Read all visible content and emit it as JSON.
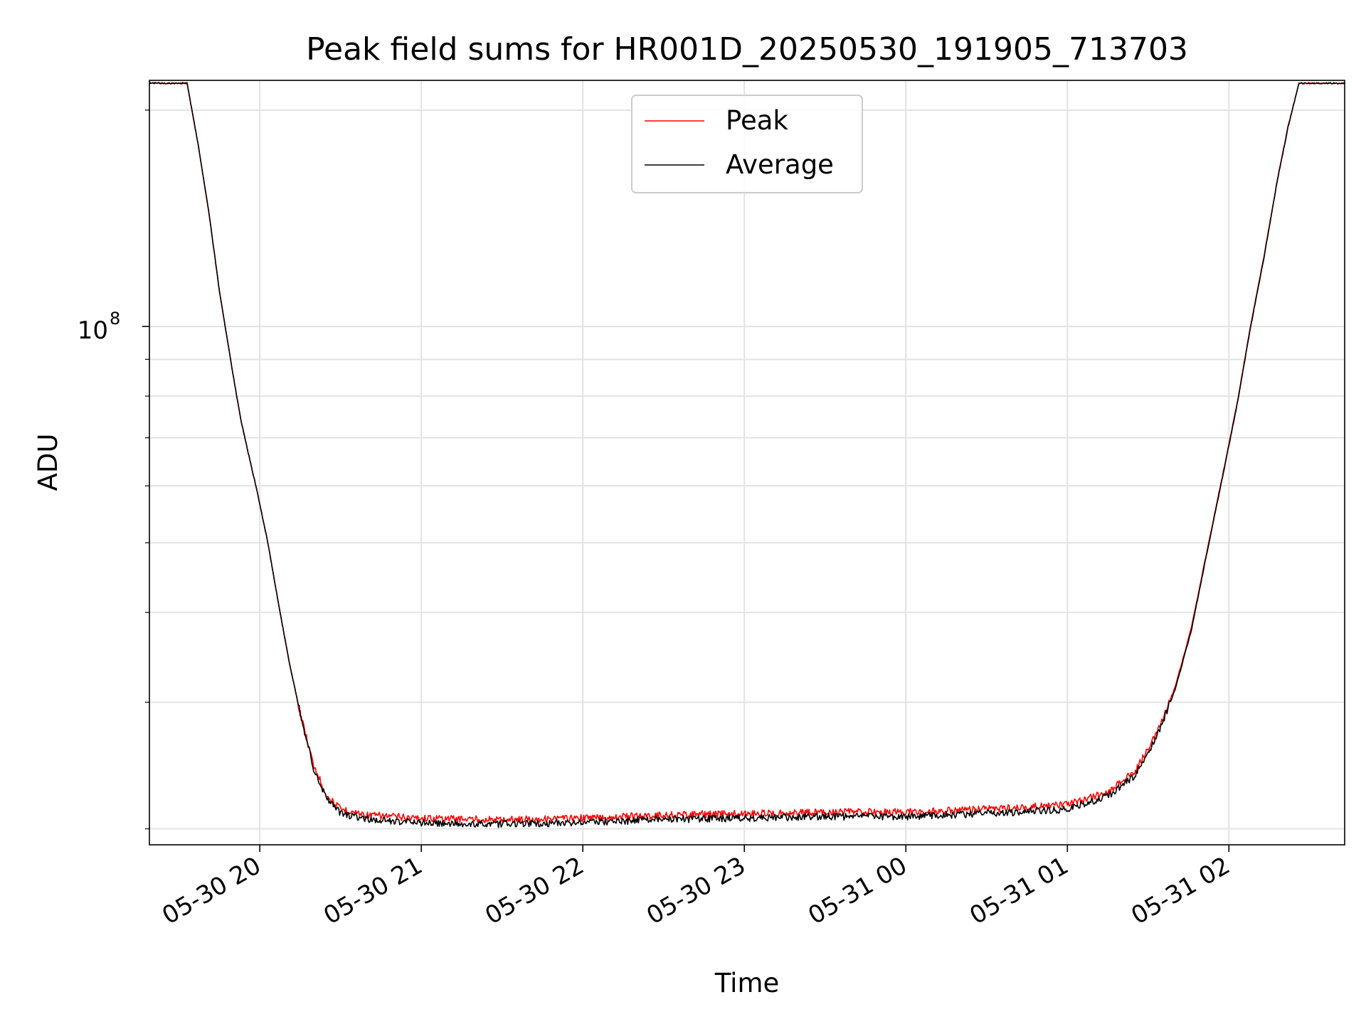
{
  "chart_data": {
    "type": "line",
    "title": "Peak field sums for HR001D_20250530_191905_713703",
    "xlabel": "Time",
    "ylabel": "ADU",
    "yscale": "log",
    "grid": true,
    "legend_placement": "top-center",
    "x_tick_labels": [
      "05-30 20",
      "05-30 21",
      "05-30 22",
      "05-30 23",
      "05-31 00",
      "05-31 01",
      "05-31 02"
    ],
    "x_ticks": [
      "2025-05-30 20:00",
      "2025-05-30 21:00",
      "2025-05-30 22:00",
      "2025-05-30 23:00",
      "2025-05-31 00:00",
      "2025-05-31 01:00",
      "2025-05-31 02:00"
    ],
    "xlim": [
      "2025-05-30 19:19",
      "2025-05-31 02:43"
    ],
    "y_major_tick": {
      "value": 100000000,
      "label_base": "10",
      "label_exp": "8"
    },
    "ylim": [
      19000000,
      220000000
    ],
    "series": [
      {
        "name": "Peak",
        "color": "#ff0000",
        "x": [
          "2025-05-30 19:19",
          "2025-05-30 19:27",
          "2025-05-30 19:33",
          "2025-05-30 19:37",
          "2025-05-30 19:41",
          "2025-05-30 19:45",
          "2025-05-30 19:50",
          "2025-05-30 19:53",
          "2025-05-30 19:56",
          "2025-05-30 19:59",
          "2025-05-30 20:03",
          "2025-05-30 20:07",
          "2025-05-30 20:11",
          "2025-05-30 20:15",
          "2025-05-30 20:20",
          "2025-05-30 20:25",
          "2025-05-30 20:30",
          "2025-05-30 20:40",
          "2025-05-30 21:00",
          "2025-05-30 21:30",
          "2025-05-30 22:00",
          "2025-05-30 22:30",
          "2025-05-30 23:00",
          "2025-05-30 23:30",
          "2025-05-31 00:00",
          "2025-05-31 00:30",
          "2025-05-31 01:00",
          "2025-05-31 01:15",
          "2025-05-31 01:25",
          "2025-05-31 01:33",
          "2025-05-31 01:40",
          "2025-05-31 01:46",
          "2025-05-31 01:52",
          "2025-05-31 01:58",
          "2025-05-31 02:03",
          "2025-05-31 02:08",
          "2025-05-31 02:13",
          "2025-05-31 02:18",
          "2025-05-31 02:22",
          "2025-05-31 02:26",
          "2025-05-31 02:43"
        ],
        "y": [
          218000000,
          218000000,
          218000000,
          180000000,
          145000000,
          112000000,
          86000000,
          74000000,
          66000000,
          59000000,
          50000000,
          41000000,
          34000000,
          29000000,
          24500000,
          22200000,
          21300000,
          20900000,
          20700000,
          20600000,
          20700000,
          20900000,
          21000000,
          21100000,
          21100000,
          21300000,
          21600000,
          22500000,
          24000000,
          27000000,
          31500000,
          38000000,
          49000000,
          63000000,
          78000000,
          100000000,
          125000000,
          160000000,
          190000000,
          218000000,
          218000000
        ]
      },
      {
        "name": "Average",
        "color": "#000000",
        "x": [
          "2025-05-30 19:19",
          "2025-05-30 19:27",
          "2025-05-30 19:33",
          "2025-05-30 19:37",
          "2025-05-30 19:41",
          "2025-05-30 19:45",
          "2025-05-30 19:50",
          "2025-05-30 19:53",
          "2025-05-30 19:56",
          "2025-05-30 19:59",
          "2025-05-30 20:03",
          "2025-05-30 20:07",
          "2025-05-30 20:11",
          "2025-05-30 20:15",
          "2025-05-30 20:20",
          "2025-05-30 20:25",
          "2025-05-30 20:30",
          "2025-05-30 20:40",
          "2025-05-30 21:00",
          "2025-05-30 21:30",
          "2025-05-30 22:00",
          "2025-05-30 22:30",
          "2025-05-30 23:00",
          "2025-05-30 23:30",
          "2025-05-31 00:00",
          "2025-05-31 00:30",
          "2025-05-31 01:00",
          "2025-05-31 01:15",
          "2025-05-31 01:25",
          "2025-05-31 01:33",
          "2025-05-31 01:40",
          "2025-05-31 01:46",
          "2025-05-31 01:52",
          "2025-05-31 01:58",
          "2025-05-31 02:03",
          "2025-05-31 02:08",
          "2025-05-31 02:13",
          "2025-05-31 02:18",
          "2025-05-31 02:22",
          "2025-05-31 02:26",
          "2025-05-31 02:43"
        ],
        "y": [
          218000000,
          218000000,
          218000000,
          180000000,
          145000000,
          112000000,
          86000000,
          74000000,
          66000000,
          59000000,
          50000000,
          41000000,
          34000000,
          29000000,
          24300000,
          22000000,
          21000000,
          20600000,
          20400000,
          20300000,
          20400000,
          20600000,
          20700000,
          20800000,
          20800000,
          21000000,
          21300000,
          22200000,
          23700000,
          26700000,
          31200000,
          37700000,
          48700000,
          62700000,
          77700000,
          99500000,
          124500000,
          159500000,
          189500000,
          218000000,
          218000000
        ]
      }
    ]
  }
}
